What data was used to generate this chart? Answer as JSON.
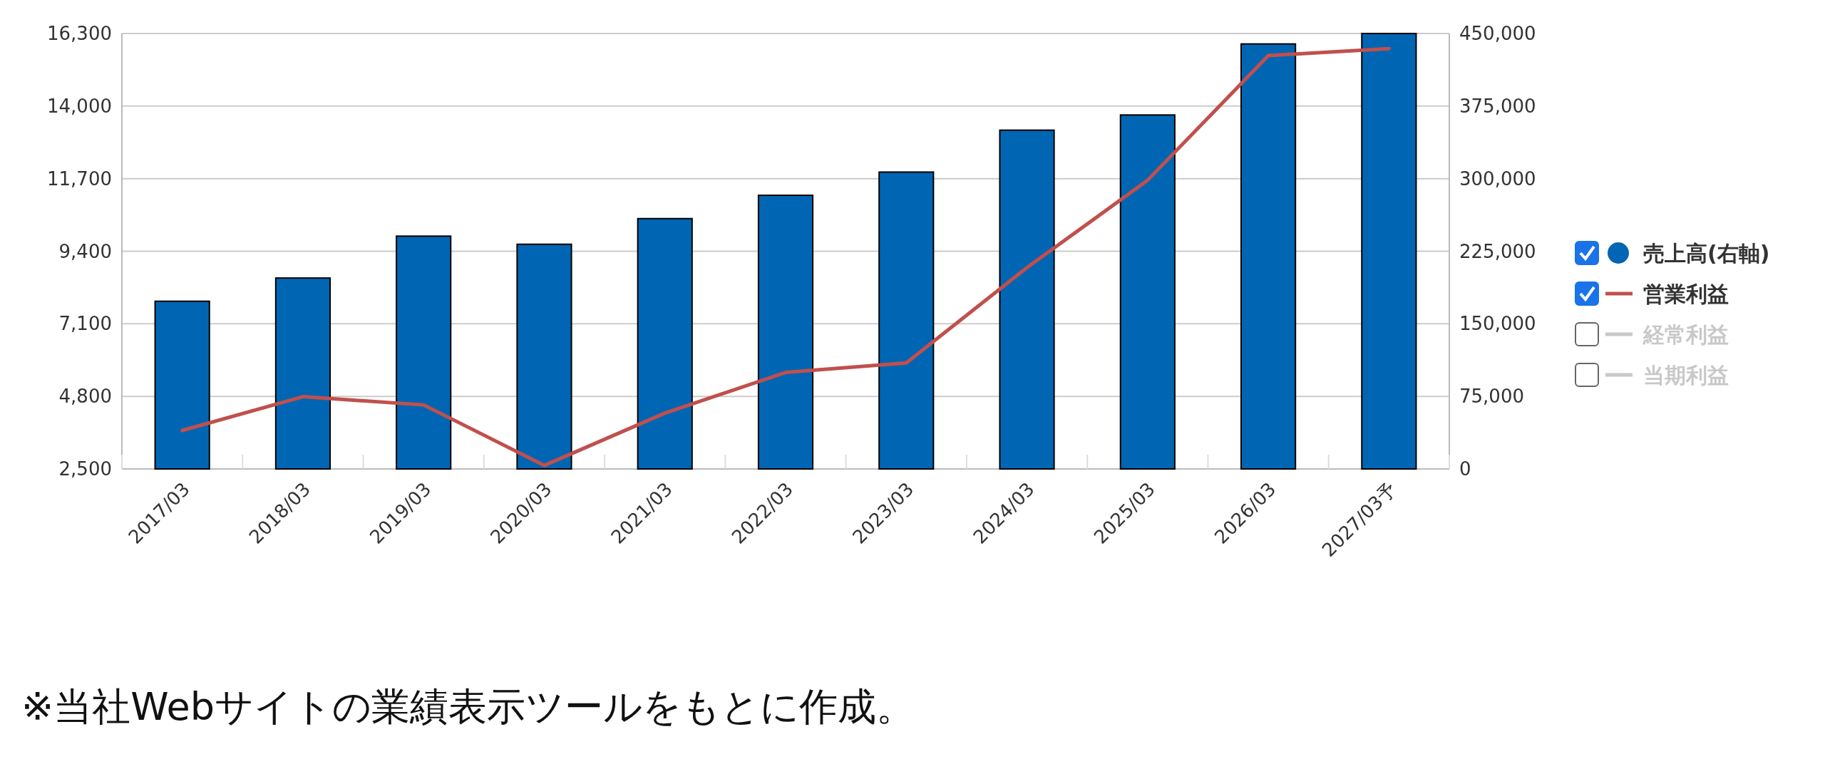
{
  "chart_data": {
    "type": "bar",
    "categories": [
      "2017/03",
      "2018/03",
      "2019/03",
      "2020/03",
      "2021/03",
      "2022/03",
      "2023/03",
      "2024/03",
      "2025/03",
      "2026/03",
      "2027/03予"
    ],
    "series": [
      {
        "name": "売上高(右軸)",
        "axis": "y2",
        "color": "#0066b3",
        "values": [
          173300,
          197300,
          240600,
          232200,
          258700,
          282800,
          306800,
          350100,
          365800,
          439200,
          450000
        ]
      },
      {
        "name": "営業利益",
        "type": "line",
        "color": "#c0504d",
        "values": [
          3720,
          4790,
          4530,
          2610,
          4270,
          5560,
          5860,
          8880,
          11650,
          15600,
          15820
        ]
      },
      {
        "name": "経常利益",
        "type": "line",
        "color": "#c8c8c8",
        "values": [
          null,
          null,
          null,
          null,
          null,
          null,
          null,
          null,
          null,
          null,
          null
        ]
      },
      {
        "name": "当期利益",
        "type": "line",
        "color": "#c8c8c8",
        "values": [
          null,
          null,
          null,
          null,
          null,
          null,
          null,
          null,
          null,
          null,
          null
        ]
      }
    ],
    "ylim": [
      2500,
      16300
    ],
    "yticks": [
      {
        "value": 2500,
        "label": "2,500"
      },
      {
        "value": 4800,
        "label": "4,800"
      },
      {
        "value": 7100,
        "label": "7,100"
      },
      {
        "value": 9400,
        "label": "9,400"
      },
      {
        "value": 11700,
        "label": "11,700"
      },
      {
        "value": 14000,
        "label": "14,000"
      },
      {
        "value": 16300,
        "label": "16,300"
      }
    ],
    "y2lim": [
      0,
      450000
    ],
    "y2ticks": [
      0,
      {
        "value": 75000,
        "label": "75,000"
      },
      {
        "value": 150000,
        "label": "150,000"
      },
      {
        "value": 225000,
        "label": "225,000"
      },
      {
        "value": 300000,
        "label": "300,000"
      },
      {
        "value": 375000,
        "label": "375,000"
      },
      {
        "value": 450000,
        "label": "450,000"
      }
    ],
    "grid": "y",
    "legend": "right",
    "annotations": [
      "※当社Webサイトの業績表示ツールをもとに作成。"
    ]
  }
}
